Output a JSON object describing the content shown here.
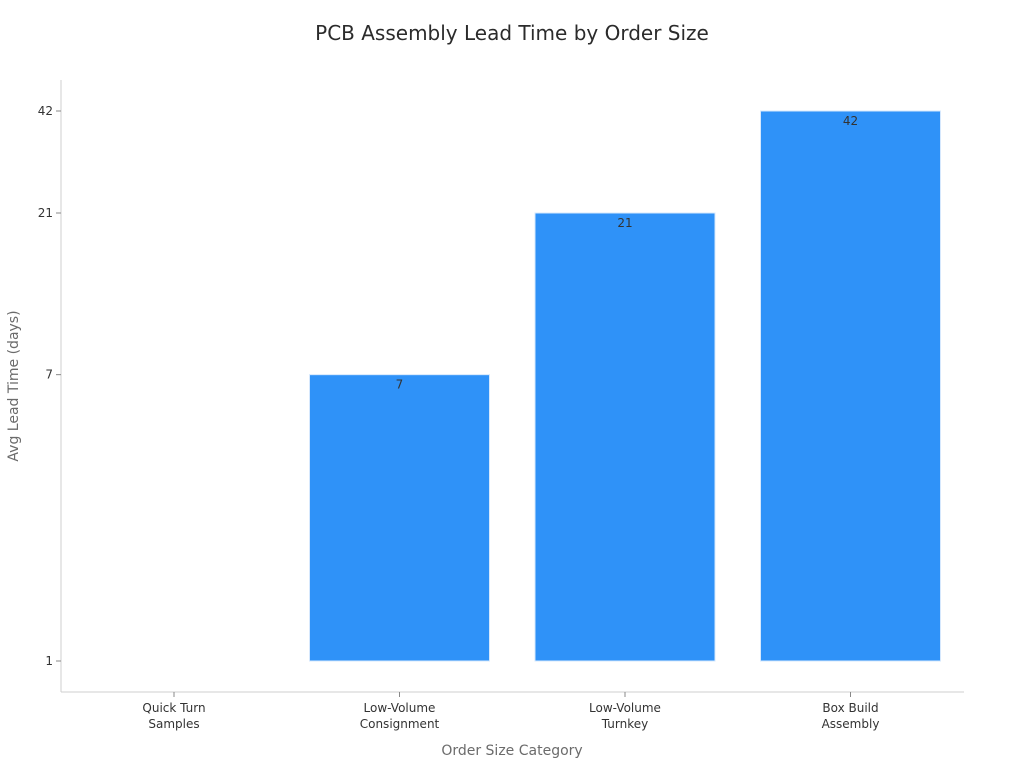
{
  "chart_data": {
    "type": "bar",
    "title": "PCB Assembly Lead Time by Order Size",
    "xlabel": "Order Size Category",
    "ylabel": "Avg Lead Time (days)",
    "categories": [
      [
        "Quick Turn",
        "Samples"
      ],
      [
        "Low-Volume",
        "Consignment"
      ],
      [
        "Low-Volume",
        "Turnkey"
      ],
      [
        "Box Build",
        "Assembly"
      ]
    ],
    "values": [
      1,
      7,
      21,
      42
    ],
    "data_labels": [
      "",
      "7",
      "21",
      "42"
    ],
    "y_scale": "log",
    "y_ticks": [
      1,
      7,
      21,
      42
    ],
    "ylim": [
      0.85,
      55
    ],
    "grid": false,
    "legend": "none",
    "bar_color": "#2f92f8"
  }
}
